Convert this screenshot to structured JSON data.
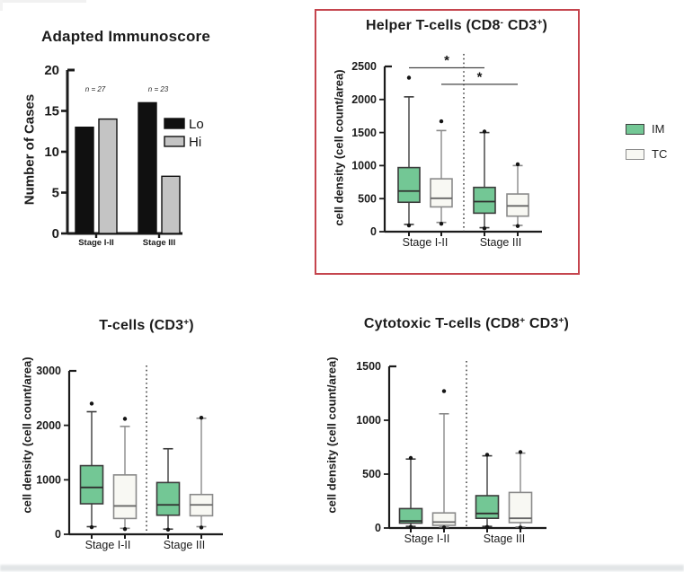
{
  "figure": {
    "background": "#ffffff",
    "highlight_box_color": "#c5454e"
  },
  "legend": {
    "items": [
      {
        "label": "IM",
        "color": "#73c795",
        "border": "#3f3f3f"
      },
      {
        "label": "TC",
        "color": "#f8f8f3",
        "border": "#8c8c8c"
      }
    ]
  },
  "box_style": {
    "IM": {
      "fill": "#73c795",
      "stroke": "#3b3b3b",
      "median": "#2f2f2f"
    },
    "TC": {
      "fill": "#f8f8f3",
      "stroke": "#8a8a8a",
      "median": "#666666"
    }
  },
  "chart_data": [
    {
      "id": "immunoscore",
      "type": "bar",
      "title": "Adapted Immunoscore",
      "ylabel": "Number of Cases",
      "ylim": [
        0,
        20
      ],
      "yticks": [
        0,
        5,
        10,
        15,
        20
      ],
      "categories": [
        "Stage I-II",
        "Stage III"
      ],
      "series": [
        {
          "name": "Lo",
          "color": "#101010",
          "values": [
            13,
            16
          ]
        },
        {
          "name": "Hi",
          "color": "#c4c4c4",
          "values": [
            14,
            7
          ]
        }
      ],
      "annotations": [
        {
          "text": "n = 27",
          "category_index": 0
        },
        {
          "text": "n = 23",
          "category_index": 1
        }
      ],
      "legend": [
        {
          "label": "Lo",
          "color": "#101010"
        },
        {
          "label": "Hi",
          "color": "#c4c4c4"
        }
      ]
    },
    {
      "id": "helper-tcells",
      "type": "box",
      "title_parts": [
        {
          "t": "Helper T-cells (CD8"
        },
        {
          "t": "-",
          "sup": true
        },
        {
          "t": " CD3"
        },
        {
          "t": "+",
          "sup": true
        },
        {
          "t": ")"
        }
      ],
      "ylabel": "cell density (cell count/area)",
      "ylim": [
        0,
        2500
      ],
      "yticks": [
        0,
        500,
        1000,
        1500,
        2000,
        2500
      ],
      "categories": [
        "Stage I-II",
        "Stage III"
      ],
      "boxes": [
        {
          "group": "Stage I-II",
          "series": "IM",
          "whisker_lo": 110,
          "q1": 445,
          "median": 615,
          "q3": 970,
          "whisker_hi": 2040,
          "outliers": [
            2330,
            95
          ]
        },
        {
          "group": "Stage I-II",
          "series": "TC",
          "whisker_lo": 140,
          "q1": 375,
          "median": 505,
          "q3": 800,
          "whisker_hi": 1530,
          "outliers": [
            1670,
            120
          ]
        },
        {
          "group": "Stage III",
          "series": "IM",
          "whisker_lo": 60,
          "q1": 280,
          "median": 455,
          "q3": 670,
          "whisker_hi": 1500,
          "outliers": [
            1515,
            50
          ]
        },
        {
          "group": "Stage III",
          "series": "TC",
          "whisker_lo": 95,
          "q1": 235,
          "median": 390,
          "q3": 570,
          "whisker_hi": 1000,
          "outliers": [
            1020,
            85
          ]
        }
      ],
      "significance": [
        {
          "label": "*",
          "y": 2480,
          "from_box": 0,
          "to_box": 2
        },
        {
          "label": "*",
          "y": 2230,
          "from_box": 1,
          "to_box": 3
        }
      ],
      "highlighted": true
    },
    {
      "id": "tcells",
      "type": "box",
      "title_parts": [
        {
          "t": "T-cells (CD3"
        },
        {
          "t": "+",
          "sup": true
        },
        {
          "t": ")"
        }
      ],
      "ylabel": "cell density (cell count/area)",
      "ylim": [
        0,
        3000
      ],
      "yticks": [
        0,
        1000,
        2000,
        3000
      ],
      "categories": [
        "Stage I-II",
        "Stage III"
      ],
      "boxes": [
        {
          "group": "Stage I-II",
          "series": "IM",
          "whisker_lo": 140,
          "q1": 560,
          "median": 860,
          "q3": 1260,
          "whisker_hi": 2250,
          "outliers": [
            2400,
            130
          ]
        },
        {
          "group": "Stage I-II",
          "series": "TC",
          "whisker_lo": 110,
          "q1": 290,
          "median": 520,
          "q3": 1090,
          "whisker_hi": 1980,
          "outliers": [
            2120,
            95
          ]
        },
        {
          "group": "Stage III",
          "series": "IM",
          "whisker_lo": 95,
          "q1": 350,
          "median": 540,
          "q3": 950,
          "whisker_hi": 1570,
          "outliers": [
            85
          ]
        },
        {
          "group": "Stage III",
          "series": "TC",
          "whisker_lo": 140,
          "q1": 340,
          "median": 540,
          "q3": 730,
          "whisker_hi": 2130,
          "outliers": [
            2140,
            125
          ]
        }
      ],
      "significance": [],
      "highlighted": false
    },
    {
      "id": "cytotoxic-tcells",
      "type": "box",
      "title_parts": [
        {
          "t": "Cytotoxic T-cells (CD8"
        },
        {
          "t": "+",
          "sup": true
        },
        {
          "t": " CD3"
        },
        {
          "t": "+",
          "sup": true
        },
        {
          "t": ")"
        }
      ],
      "ylabel": "cell density (cell count/area)",
      "ylim": [
        0,
        1500
      ],
      "yticks": [
        0,
        500,
        1000,
        1500
      ],
      "categories": [
        "Stage I-II",
        "Stage III"
      ],
      "boxes": [
        {
          "group": "Stage I-II",
          "series": "IM",
          "whisker_lo": 15,
          "q1": 45,
          "median": 65,
          "q3": 180,
          "whisker_hi": 640,
          "outliers": [
            650,
            10
          ]
        },
        {
          "group": "Stage I-II",
          "series": "TC",
          "whisker_lo": 10,
          "q1": 25,
          "median": 55,
          "q3": 140,
          "whisker_hi": 1060,
          "outliers": [
            1270,
            5
          ]
        },
        {
          "group": "Stage III",
          "series": "IM",
          "whisker_lo": 15,
          "q1": 90,
          "median": 135,
          "q3": 300,
          "whisker_hi": 670,
          "outliers": [
            680,
            10
          ]
        },
        {
          "group": "Stage III",
          "series": "TC",
          "whisker_lo": 10,
          "q1": 50,
          "median": 90,
          "q3": 330,
          "whisker_hi": 695,
          "outliers": [
            705,
            5
          ]
        }
      ],
      "significance": [],
      "highlighted": false
    }
  ]
}
